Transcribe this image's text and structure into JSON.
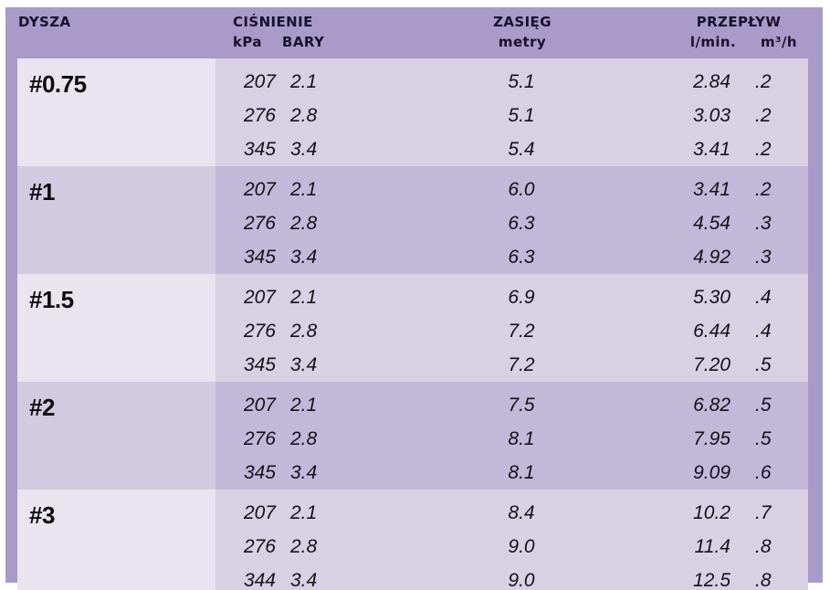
{
  "colors": {
    "frame": "#a89bc9",
    "band_light_label": "#e8e4f0",
    "band_light_data": "#d7d1e3",
    "band_dark_label": "#d2cae0",
    "band_dark_data": "#c2b9d9",
    "header_text": "#17122c",
    "data_text": "#121117"
  },
  "header": {
    "dysza": "DYSZA",
    "cisnienie": "CIŚNIENIE",
    "kpa": "kPa",
    "bary": "BARY",
    "zasieg": "ZASIĘG",
    "metry": "metry",
    "przeplyw": "PRZEPŁYW",
    "lmin": "l/min.",
    "m3h": "m³/h"
  },
  "groups": [
    {
      "nozzle": "#0.75",
      "rows": [
        {
          "kpa": "207",
          "bary": "2.1",
          "metry": "5.1",
          "lmin": "2.84",
          "m3h": ".2"
        },
        {
          "kpa": "276",
          "bary": "2.8",
          "metry": "5.1",
          "lmin": "3.03",
          "m3h": ".2"
        },
        {
          "kpa": "345",
          "bary": "3.4",
          "metry": "5.4",
          "lmin": "3.41",
          "m3h": ".2"
        }
      ]
    },
    {
      "nozzle": "#1",
      "rows": [
        {
          "kpa": "207",
          "bary": "2.1",
          "metry": "6.0",
          "lmin": "3.41",
          "m3h": ".2"
        },
        {
          "kpa": "276",
          "bary": "2.8",
          "metry": "6.3",
          "lmin": "4.54",
          "m3h": ".3"
        },
        {
          "kpa": "345",
          "bary": "3.4",
          "metry": "6.3",
          "lmin": "4.92",
          "m3h": ".3"
        }
      ]
    },
    {
      "nozzle": "#1.5",
      "rows": [
        {
          "kpa": "207",
          "bary": "2.1",
          "metry": "6.9",
          "lmin": "5.30",
          "m3h": ".4"
        },
        {
          "kpa": "276",
          "bary": "2.8",
          "metry": "7.2",
          "lmin": "6.44",
          "m3h": ".4"
        },
        {
          "kpa": "345",
          "bary": "3.4",
          "metry": "7.2",
          "lmin": "7.20",
          "m3h": ".5"
        }
      ]
    },
    {
      "nozzle": "#2",
      "rows": [
        {
          "kpa": "207",
          "bary": "2.1",
          "metry": "7.5",
          "lmin": "6.82",
          "m3h": ".5"
        },
        {
          "kpa": "276",
          "bary": "2.8",
          "metry": "8.1",
          "lmin": "7.95",
          "m3h": ".5"
        },
        {
          "kpa": "345",
          "bary": "3.4",
          "metry": "8.1",
          "lmin": "9.09",
          "m3h": ".6"
        }
      ]
    },
    {
      "nozzle": "#3",
      "rows": [
        {
          "kpa": "207",
          "bary": "2.1",
          "metry": "8.4",
          "lmin": "10.2",
          "m3h": ".7"
        },
        {
          "kpa": "276",
          "bary": "2.8",
          "metry": "9.0",
          "lmin": "11.4",
          "m3h": ".8"
        },
        {
          "kpa": "344",
          "bary": "3.4",
          "metry": "9.0",
          "lmin": "12.5",
          "m3h": ".8"
        }
      ]
    }
  ],
  "chart_data": {
    "type": "table",
    "title": "Nozzle performance table (Polish)",
    "columns": [
      "DYSZA",
      "CIŚNIENIE kPa",
      "CIŚNIENIE BARY",
      "ZASIĘG metry",
      "PRZEPŁYW l/min.",
      "PRZEPŁYW m³/h"
    ],
    "rows": [
      [
        "#0.75",
        207,
        2.1,
        5.1,
        2.84,
        0.2
      ],
      [
        "#0.75",
        276,
        2.8,
        5.1,
        3.03,
        0.2
      ],
      [
        "#0.75",
        345,
        3.4,
        5.4,
        3.41,
        0.2
      ],
      [
        "#1",
        207,
        2.1,
        6.0,
        3.41,
        0.2
      ],
      [
        "#1",
        276,
        2.8,
        6.3,
        4.54,
        0.3
      ],
      [
        "#1",
        345,
        3.4,
        6.3,
        4.92,
        0.3
      ],
      [
        "#1.5",
        207,
        2.1,
        6.9,
        5.3,
        0.4
      ],
      [
        "#1.5",
        276,
        2.8,
        7.2,
        6.44,
        0.4
      ],
      [
        "#1.5",
        345,
        3.4,
        7.2,
        7.2,
        0.5
      ],
      [
        "#2",
        207,
        2.1,
        7.5,
        6.82,
        0.5
      ],
      [
        "#2",
        276,
        2.8,
        8.1,
        7.95,
        0.5
      ],
      [
        "#2",
        345,
        3.4,
        8.1,
        9.09,
        0.6
      ],
      [
        "#3",
        207,
        2.1,
        8.4,
        10.2,
        0.7
      ],
      [
        "#3",
        276,
        2.8,
        9.0,
        11.4,
        0.8
      ],
      [
        "#3",
        344,
        3.4,
        9.0,
        12.5,
        0.8
      ]
    ]
  }
}
